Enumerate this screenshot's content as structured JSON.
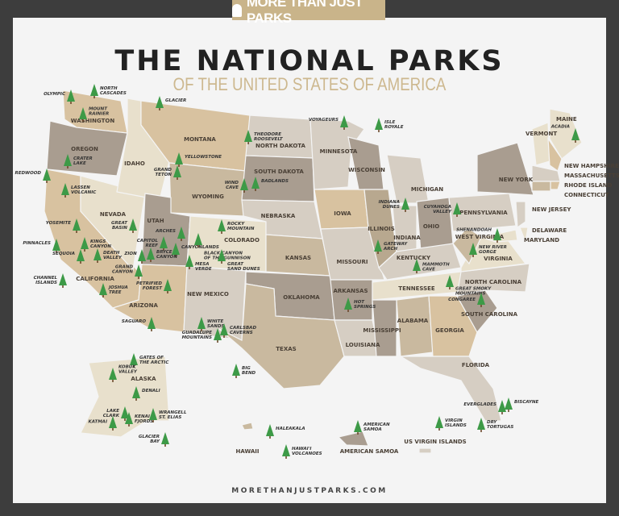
{
  "brand": {
    "logo_text": "MORE THAN JUST PARKS",
    "footer_url": "MORETHANJUSTPARKS.COM"
  },
  "header": {
    "title": "THE NATIONAL PARKS",
    "subtitle": "OF THE UNITED STATES OF AMERICA"
  },
  "colors": {
    "frame": "#3d3d3d",
    "background": "#f4f4f4",
    "accent": "#c9b48a",
    "tree": "#3d9a47",
    "trunk": "#6b4a2b"
  },
  "states": [
    "WASHINGTON",
    "OREGON",
    "CALIFORNIA",
    "NEVADA",
    "IDAHO",
    "MONTANA",
    "WYOMING",
    "UTAH",
    "COLORADO",
    "ARIZONA",
    "NEW MEXICO",
    "NORTH DAKOTA",
    "SOUTH DAKOTA",
    "NEBRASKA",
    "KANSAS",
    "OKLAHOMA",
    "TEXAS",
    "MINNESOTA",
    "IOWA",
    "MISSOURI",
    "ARKANSAS",
    "LOUISIANA",
    "WISCONSIN",
    "ILLINOIS",
    "MICHIGAN",
    "INDIANA",
    "OHIO",
    "KENTUCKY",
    "TENNESSEE",
    "MISSISSIPPI",
    "ALABAMA",
    "GEORGIA",
    "FLORIDA",
    "SOUTH CAROLINA",
    "NORTH CAROLINA",
    "VIRGINIA",
    "WEST VIRGINIA",
    "PENNSYLVANIA",
    "NEW YORK",
    "MAINE",
    "VERMONT",
    "NEW HAMPSHIRE",
    "MASSACHUSETTS",
    "RHODE ISLAND",
    "CONNECTICUT",
    "NEW JERSEY",
    "DELAWARE",
    "MARYLAND",
    "ALASKA",
    "HAWAII",
    "AMERICAN SAMOA",
    "US VIRGIN ISLANDS"
  ],
  "parks": [
    "OLYMPIC",
    "NORTH CASCADES",
    "MOUNT RAINIER",
    "GLACIER",
    "CRATER LAKE",
    "REDWOOD",
    "LASSEN VOLCANIC",
    "YELLOWSTONE",
    "GRAND TETON",
    "THEODORE ROOSEVELT",
    "VOYAGEURS",
    "ISLE ROYALE",
    "WIND CAVE",
    "BADLANDS",
    "YOSEMITE",
    "GREAT BASIN",
    "KINGS CANYON",
    "PINNACLES",
    "SEQUOIA",
    "DEATH VALLEY",
    "CHANNEL ISLANDS",
    "JOSHUA TREE",
    "GRAND CANYON",
    "ARCHES",
    "CAPITOL REEF",
    "CANYONLANDS",
    "ZION",
    "BRYCE CANYON",
    "ROCKY MOUNTAIN",
    "BLACK CANYON OF THE GUNNISON",
    "GREAT SAND DUNES",
    "MESA VERDE",
    "PETRIFIED FOREST",
    "SAGUARO",
    "WHITE SANDS",
    "GUADALUPE MOUNTAINS",
    "CARLSBAD CAVERNS",
    "BIG BEND",
    "HOT SPRINGS",
    "GATEWAY ARCH",
    "INDIANA DUNES",
    "CUYAHOGA VALLEY",
    "MAMMOTH CAVE",
    "GREAT SMOKY MOUNTAINS",
    "SHENANDOAH",
    "NEW RIVER GORGE",
    "CONGAREE",
    "ACADIA",
    "EVERGLADES",
    "BISCAYNE",
    "DRY TORTUGAS",
    "GATES OF THE ARCTIC",
    "KOBUK VALLEY",
    "DENALI",
    "LAKE CLARK",
    "KATMAI",
    "KENAI FJORDS",
    "WRANGELL ST. ELIAS",
    "GLACIER BAY",
    "HALEAKALA",
    "HAWAI'I VOLCANOES",
    "AMERICAN SAMOA",
    "VIRGIN ISLANDS"
  ]
}
